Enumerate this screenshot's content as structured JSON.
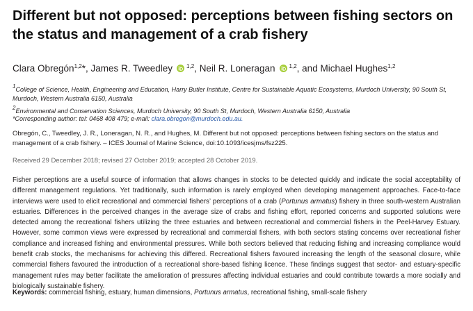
{
  "header": {
    "title": "Different but not opposed: perceptions between fishing sectors on the status and management of a crab fishery",
    "authors": [
      {
        "name": "Clara Obregón",
        "sup": "1,2",
        "suffix": "*,"
      },
      {
        "name": "James R. Tweedley",
        "sup": "1,2",
        "suffix": ","
      },
      {
        "name": "Neil R. Loneragan",
        "sup": "1,2",
        "suffix": ","
      },
      {
        "prefix": "and",
        "name": "Michael Hughes",
        "sup": "1,2"
      }
    ],
    "affiliations": [
      {
        "sup": "1",
        "text": "College of Science, Health, Engineering and Education, Harry Butler Institute, Centre for Sustainable Aquatic Ecosystems, Murdoch University, 90 South St, Murdoch, Western Australia 6150, Australia"
      },
      {
        "sup": "2",
        "text": "Environmental and Conservation Sciences, Murdoch University, 90 South St, Murdoch, Western Australia 6150, Australia"
      }
    ],
    "corresponding": {
      "text": "*Corresponding author: tel: 0468 408 479; e-mail:",
      "email": "clara.obregon@murdoch.edu.au."
    },
    "citation": "Obregón, C., Tweedley, J. R., Loneragan, N. R., and Hughes, M. Different but not opposed: perceptions between fishing sectors on the status and management of a crab fishery. – ICES Journal of Marine Science, doi:10.1093/icesjms/fsz225.",
    "received": "Received 29 December 2018; revised 27 October 2019; accepted 28 October 2019."
  },
  "abstract": [
    "Fisher perceptions are a useful source of information that allows changes in stocks to be detected quickly and indicate the social acceptability of different management regulations. Yet traditionally, such information is rarely employed when developing management approaches. Face-to-face interviews were used to elicit recreational and commercial fishers’ perceptions of a crab (",
    "Portunus armatus",
    ") fishery in three south-western Australian estuaries. Differences in the perceived changes in the average size of crabs and fishing effort, reported concerns and supported solutions were detected among the recreational fishers utilizing the three estuaries and between recreational and commercial fishers in the Peel-Harvey Estuary. However, some common views were expressed by recreational and commercial fishers, with both sectors stating concerns over recreational fisher compliance and increased fishing and environmental pressures. While both sectors believed that reducing fishing and increasing compliance would benefit crab stocks, the mechanisms for achieving this differed. Recreational fishers favoured increasing the length of the seasonal closure, while commercial fishers favoured the introduction of a recreational shore-based fishing licence. These findings suggest that sector- and estuary-specific management rules may better facilitate the amelioration of pressures affecting individual estuaries and could contribute towards a more socially and biologically sustainable fishery."
  ],
  "keywords": {
    "label": "Keywords:",
    "parts": [
      "commercial fishing, estuary, human dimensions,",
      "Portunus armatus",
      ", recreational fishing, small-scale fishery"
    ]
  }
}
